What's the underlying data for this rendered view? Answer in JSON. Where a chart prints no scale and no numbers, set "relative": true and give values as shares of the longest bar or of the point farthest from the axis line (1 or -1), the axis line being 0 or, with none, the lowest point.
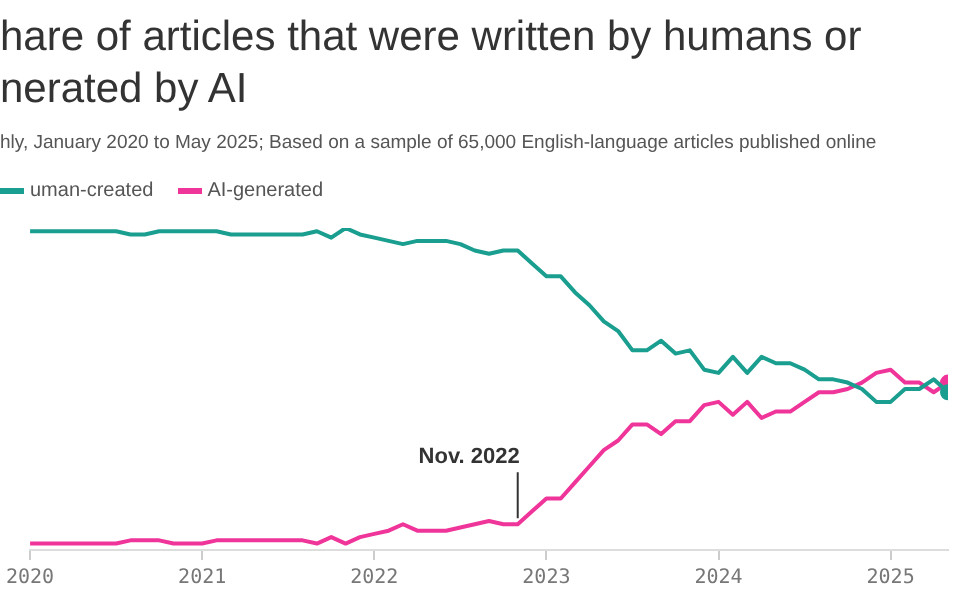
{
  "chart_data": {
    "type": "line",
    "title": "hare of articles that were written by humans or\nnerated by AI",
    "subtitle": "hly, January 2020 to May 2025; Based on a sample of 65,000 English-language articles published online",
    "x": [
      "2020-01",
      "2020-02",
      "2020-03",
      "2020-04",
      "2020-05",
      "2020-06",
      "2020-07",
      "2020-08",
      "2020-09",
      "2020-10",
      "2020-11",
      "2020-12",
      "2021-01",
      "2021-02",
      "2021-03",
      "2021-04",
      "2021-05",
      "2021-06",
      "2021-07",
      "2021-08",
      "2021-09",
      "2021-10",
      "2021-11",
      "2021-12",
      "2022-01",
      "2022-02",
      "2022-03",
      "2022-04",
      "2022-05",
      "2022-06",
      "2022-07",
      "2022-08",
      "2022-09",
      "2022-10",
      "2022-11",
      "2022-12",
      "2023-01",
      "2023-02",
      "2023-03",
      "2023-04",
      "2023-05",
      "2023-06",
      "2023-07",
      "2023-08",
      "2023-09",
      "2023-10",
      "2023-11",
      "2023-12",
      "2024-01",
      "2024-02",
      "2024-03",
      "2024-04",
      "2024-05",
      "2024-06",
      "2024-07",
      "2024-08",
      "2024-09",
      "2024-10",
      "2024-11",
      "2024-12",
      "2025-01",
      "2025-02",
      "2025-03",
      "2025-04",
      "2025-05"
    ],
    "series": [
      {
        "name": "uman-created",
        "color": "#1a9e8f",
        "values": [
          0.99,
          0.99,
          0.99,
          0.99,
          0.99,
          0.99,
          0.99,
          0.98,
          0.98,
          0.99,
          0.99,
          0.99,
          0.99,
          0.99,
          0.98,
          0.98,
          0.98,
          0.98,
          0.98,
          0.98,
          0.99,
          0.97,
          1,
          0.98,
          0.97,
          0.96,
          0.95,
          0.96,
          0.96,
          0.96,
          0.95,
          0.93,
          0.92,
          0.93,
          0.93,
          0.89,
          0.85,
          0.85,
          0.8,
          0.76,
          0.71,
          0.68,
          0.62,
          0.62,
          0.65,
          0.61,
          0.62,
          0.56,
          0.55,
          0.6,
          0.55,
          0.6,
          0.58,
          0.58,
          0.56,
          0.53,
          0.53,
          0.52,
          0.5,
          0.46,
          0.46,
          0.5,
          0.5,
          0.53,
          0.49
        ]
      },
      {
        "name": "AI-generated",
        "color": "#f0359a",
        "values": [
          0.02,
          0.02,
          0.02,
          0.02,
          0.02,
          0.02,
          0.02,
          0.03,
          0.03,
          0.03,
          0.02,
          0.02,
          0.02,
          0.03,
          0.03,
          0.03,
          0.03,
          0.03,
          0.03,
          0.03,
          0.02,
          0.04,
          0.02,
          0.04,
          0.05,
          0.06,
          0.08,
          0.06,
          0.06,
          0.06,
          0.07,
          0.08,
          0.09,
          0.08,
          0.08,
          0.12,
          0.16,
          0.16,
          0.21,
          0.26,
          0.31,
          0.34,
          0.39,
          0.39,
          0.36,
          0.4,
          0.4,
          0.45,
          0.46,
          0.42,
          0.46,
          0.41,
          0.43,
          0.43,
          0.46,
          0.49,
          0.49,
          0.5,
          0.52,
          0.55,
          0.56,
          0.52,
          0.52,
          0.49,
          0.52
        ]
      }
    ],
    "xlim": [
      "2020-01",
      "2025-05"
    ],
    "xticks": [
      "2020",
      "2021",
      "2022",
      "2023",
      "2024",
      "2025"
    ],
    "relative": true,
    "legend": "top left",
    "annotations": [
      {
        "text": "Nov. 2022",
        "x": "2022-11",
        "y": 0.08
      }
    ]
  }
}
